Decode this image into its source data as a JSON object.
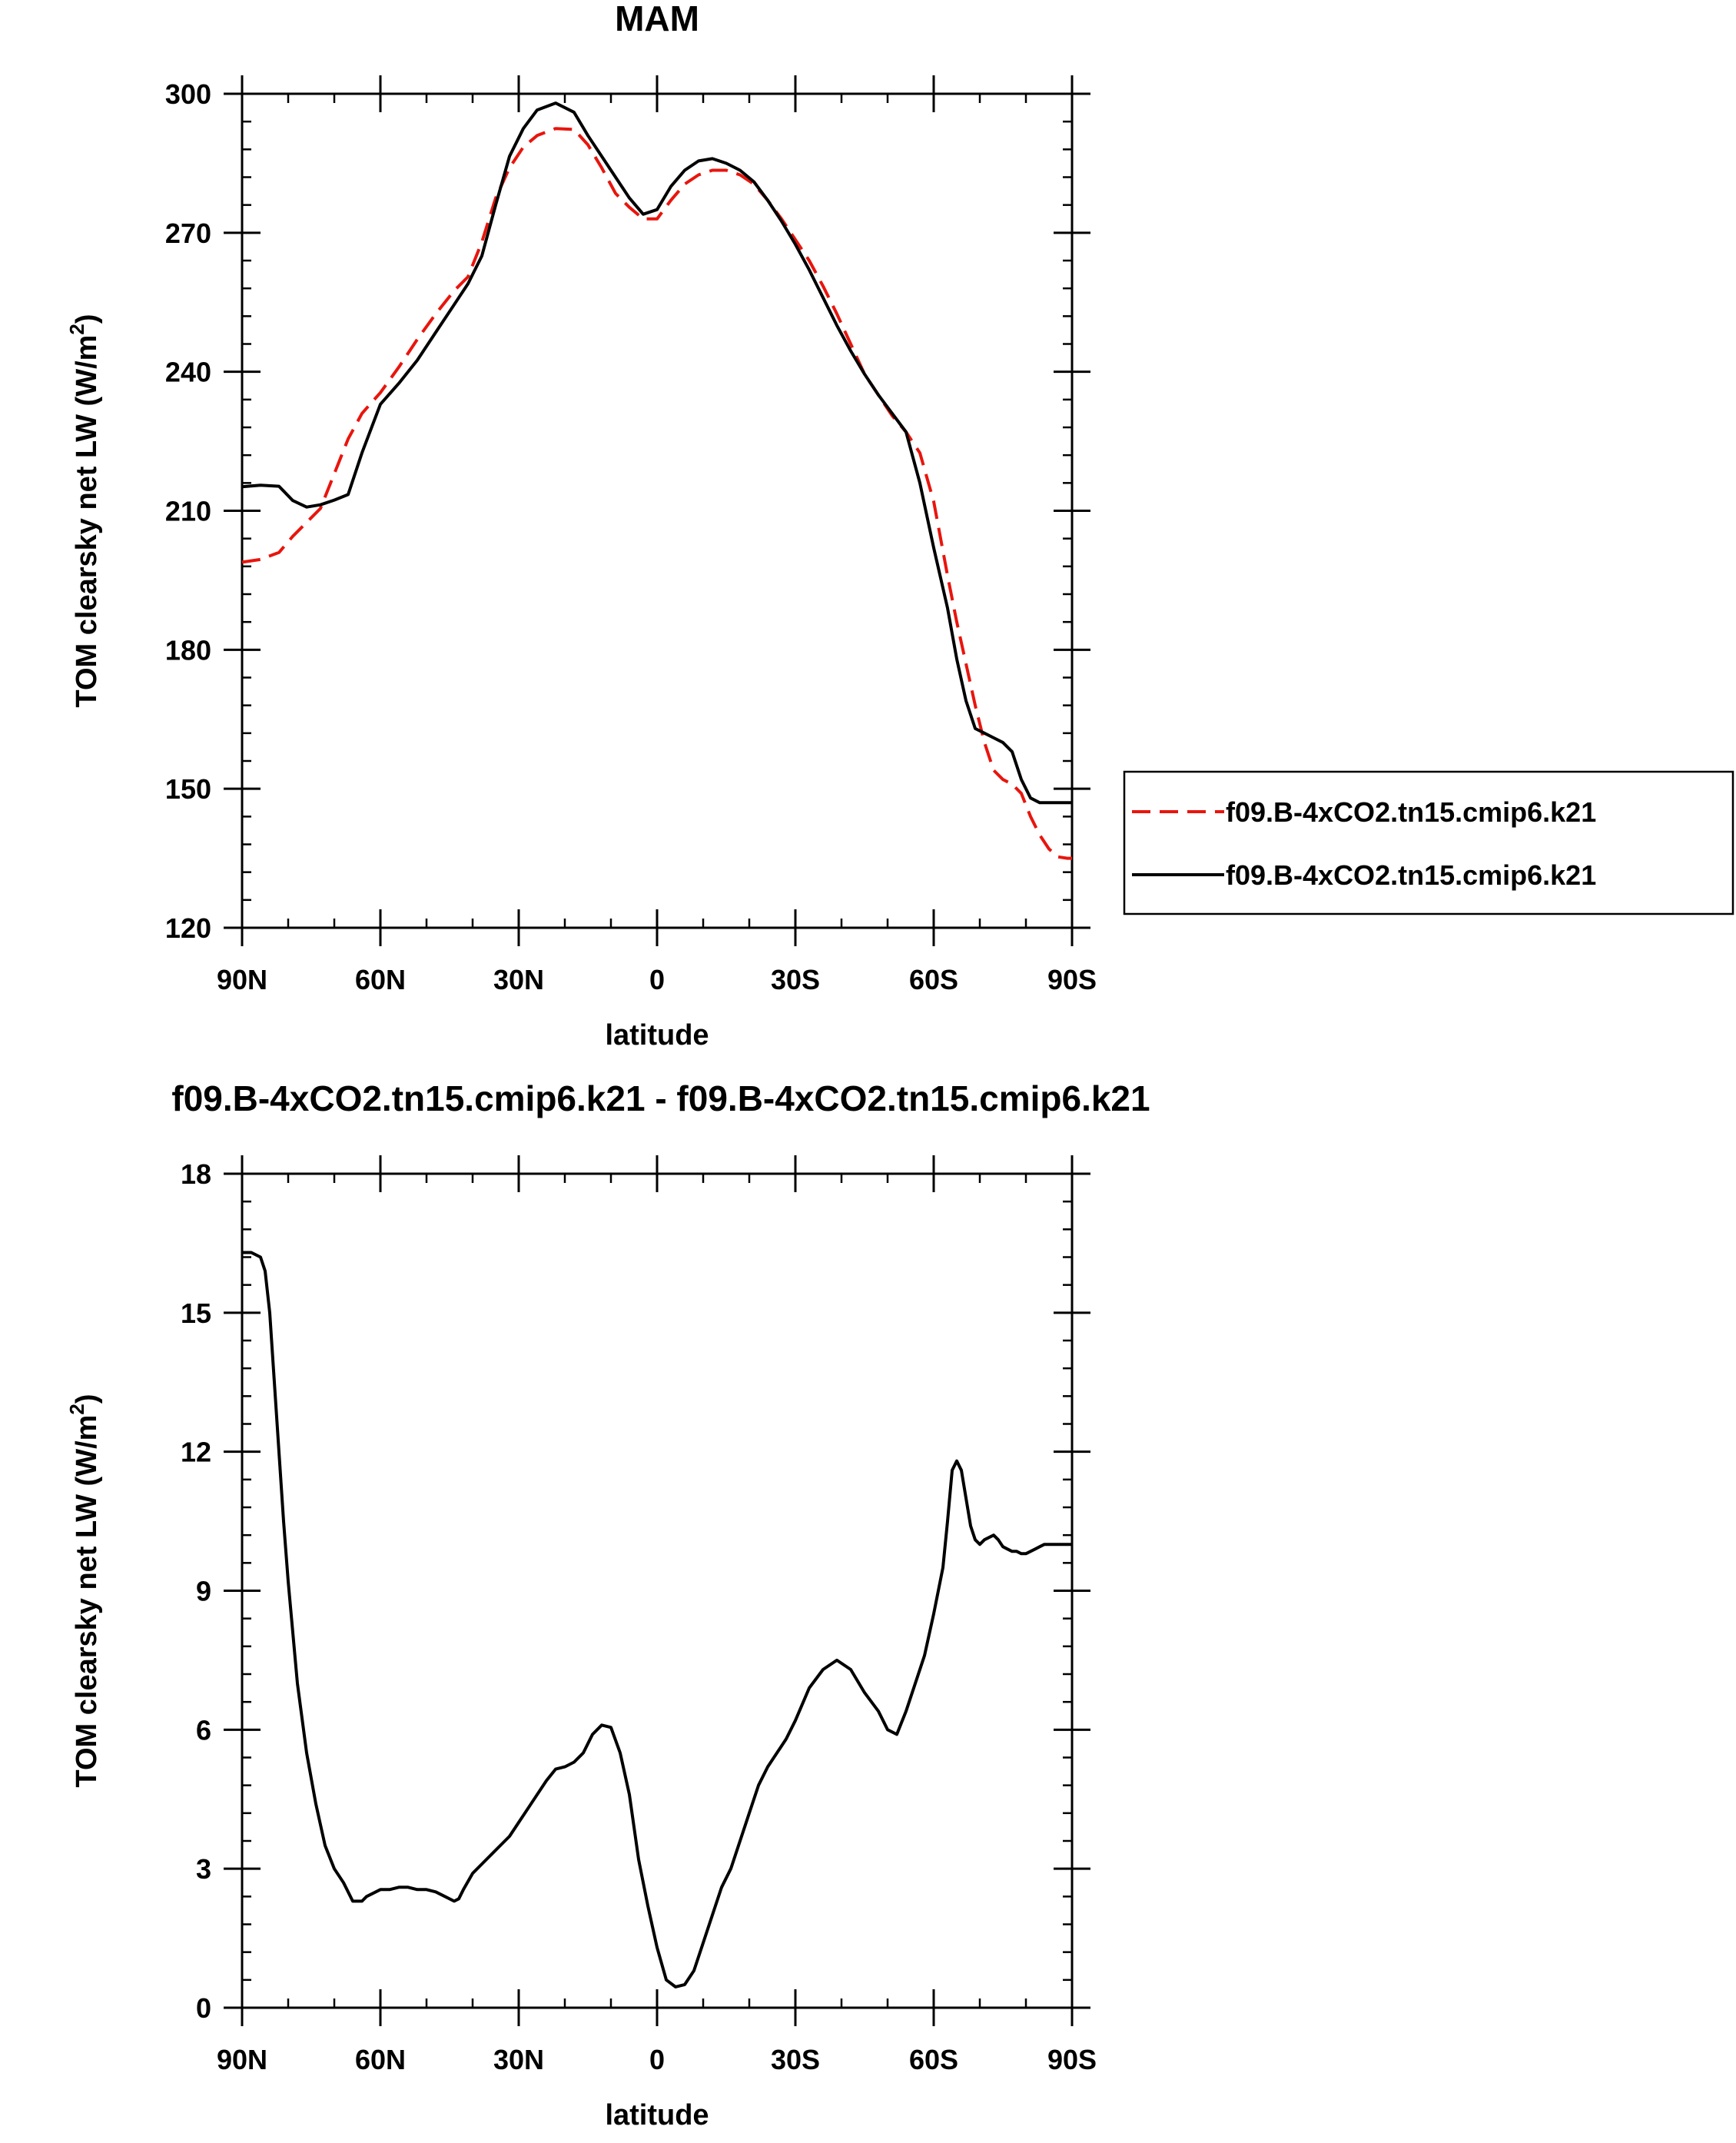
{
  "colors": {
    "control": "#000000",
    "experiment": "#e8150d",
    "axes": "#000000"
  },
  "chart_data": [
    {
      "type": "line",
      "title": "MAM",
      "xlabel": "latitude",
      "ylabel": "TOM clearsky net LW (W/m",
      "ylabel_unit_exponent": "2",
      "ylabel_close": ")",
      "xlim": [
        90,
        -90
      ],
      "ylim": [
        120,
        300
      ],
      "xticks": [
        90,
        60,
        30,
        0,
        -30,
        -60,
        -90
      ],
      "xtick_labels": [
        "90N",
        "60N",
        "30N",
        "0",
        "30S",
        "60S",
        "90S"
      ],
      "yticks": [
        120,
        150,
        180,
        210,
        240,
        270,
        300
      ],
      "ytick_labels": [
        "120",
        "150",
        "180",
        "210",
        "240",
        "270",
        "300"
      ],
      "legend_position": "right",
      "series": [
        {
          "name": "f09.B-4xCO2.tn15.cmip6.k21",
          "style": "dashed",
          "x": [
            90,
            86,
            82,
            79,
            76,
            73,
            70,
            67,
            64,
            60,
            56,
            52,
            48,
            44,
            41,
            38,
            35,
            32,
            29,
            26,
            22,
            18,
            15,
            12,
            9,
            6,
            3,
            0,
            -3,
            -6,
            -9,
            -12,
            -15,
            -18,
            -21,
            -24,
            -27,
            -30,
            -33,
            -36,
            -39,
            -42,
            -45,
            -48,
            -51,
            -54,
            -57,
            -60,
            -63,
            -65,
            -67,
            -69,
            -71,
            -73,
            -75,
            -77,
            -79,
            -81,
            -83,
            -85,
            -87,
            -89,
            -90
          ],
          "values": [
            198.9,
            199.5,
            201,
            204.5,
            207.5,
            210.5,
            218,
            225.5,
            231,
            235.5,
            241,
            247,
            252.5,
            257.5,
            260.5,
            268,
            277.5,
            284,
            288.5,
            291,
            292.5,
            292.3,
            289,
            284,
            278.5,
            275.5,
            273,
            273,
            277,
            280.5,
            282.5,
            283.5,
            283.5,
            282.5,
            280.5,
            277,
            273,
            268.5,
            264,
            258.5,
            252.5,
            246,
            239.5,
            235,
            230.5,
            227,
            222.5,
            212,
            196,
            186,
            177,
            168,
            160,
            154,
            152,
            151,
            149,
            144,
            140,
            137,
            135.3,
            135,
            135
          ]
        },
        {
          "name": "f09.B-4xCO2.tn15.cmip6.k21",
          "style": "solid",
          "x": [
            90,
            86,
            82,
            79,
            76,
            73,
            70,
            67,
            64,
            60,
            56,
            52,
            48,
            44,
            41,
            38,
            35,
            32,
            29,
            26,
            22,
            18,
            15,
            12,
            9,
            6,
            3,
            0,
            -3,
            -6,
            -9,
            -12,
            -15,
            -18,
            -21,
            -24,
            -27,
            -30,
            -33,
            -36,
            -39,
            -42,
            -45,
            -48,
            -51,
            -54,
            -57,
            -60,
            -63,
            -65,
            -67,
            -69,
            -71,
            -73,
            -75,
            -77,
            -79,
            -81,
            -83,
            -85,
            -87,
            -89,
            -90
          ],
          "values": [
            215.2,
            215.5,
            215.3,
            212.2,
            210.8,
            211.3,
            212.3,
            213.5,
            222.5,
            233,
            237.5,
            242.5,
            248.5,
            254.5,
            259,
            265,
            276,
            286.5,
            292.5,
            296.5,
            298,
            296,
            291,
            286.5,
            282,
            277.5,
            274,
            275,
            280,
            283.5,
            285.5,
            286,
            285,
            283.5,
            281,
            277,
            272.5,
            267.5,
            262,
            256,
            250,
            244.5,
            239.5,
            235,
            231,
            227,
            216,
            202,
            189,
            178,
            169,
            163,
            162,
            161,
            160,
            158,
            152,
            148,
            147,
            147,
            147,
            147,
            147
          ]
        }
      ]
    },
    {
      "type": "line",
      "title": "f09.B-4xCO2.tn15.cmip6.k21 - f09.B-4xCO2.tn15.cmip6.k21",
      "xlabel": "latitude",
      "ylabel": "TOM clearsky net LW (W/m",
      "ylabel_unit_exponent": "2",
      "ylabel_close": ")",
      "xlim": [
        90,
        -90
      ],
      "ylim": [
        0,
        18
      ],
      "xticks": [
        90,
        60,
        30,
        0,
        -30,
        -60,
        -90
      ],
      "xtick_labels": [
        "90N",
        "60N",
        "30N",
        "0",
        "30S",
        "60S",
        "90S"
      ],
      "yticks": [
        0,
        3,
        6,
        9,
        12,
        15,
        18
      ],
      "ytick_labels": [
        "0",
        "3",
        "6",
        "9",
        "12",
        "15",
        "18"
      ],
      "series": [
        {
          "style": "solid",
          "x": [
            90,
            88,
            86,
            85,
            84,
            83,
            82,
            81,
            80,
            78,
            76,
            74,
            72,
            70,
            68,
            66,
            64,
            63,
            62,
            61,
            60,
            58,
            56,
            54,
            52,
            50,
            48,
            46,
            44,
            43,
            42,
            40,
            38,
            36,
            34,
            32,
            30,
            28,
            26,
            24,
            22,
            20,
            18,
            16,
            14,
            12,
            10,
            8,
            6,
            5,
            4,
            2,
            0,
            -2,
            -4,
            -6,
            -8,
            -10,
            -12,
            -14,
            -16,
            -18,
            -20,
            -22,
            -24,
            -26,
            -28,
            -30,
            -33,
            -36,
            -39,
            -42,
            -45,
            -48,
            -50,
            -52,
            -54,
            -56,
            -58,
            -60,
            -62,
            -63,
            -64,
            -65,
            -66,
            -67,
            -68,
            -69,
            -70,
            -71,
            -72,
            -73,
            -74,
            -75,
            -76,
            -77,
            -78,
            -79,
            -80,
            -81,
            -82,
            -83,
            -84,
            -85,
            -86,
            -87,
            -88,
            -89,
            -90
          ],
          "values": [
            16.3,
            16.3,
            16.2,
            15.9,
            15.0,
            13.5,
            12.0,
            10.5,
            9.2,
            7.0,
            5.5,
            4.4,
            3.5,
            3.0,
            2.7,
            2.3,
            2.3,
            2.4,
            2.45,
            2.5,
            2.55,
            2.55,
            2.6,
            2.6,
            2.55,
            2.55,
            2.5,
            2.4,
            2.3,
            2.35,
            2.55,
            2.9,
            3.1,
            3.3,
            3.5,
            3.7,
            4.0,
            4.3,
            4.6,
            4.9,
            5.15,
            5.2,
            5.3,
            5.5,
            5.9,
            6.1,
            6.05,
            5.5,
            4.6,
            3.9,
            3.2,
            2.2,
            1.3,
            0.6,
            0.45,
            0.5,
            0.8,
            1.4,
            2.0,
            2.6,
            3.0,
            3.6,
            4.2,
            4.8,
            5.2,
            5.5,
            5.8,
            6.2,
            6.9,
            7.3,
            7.5,
            7.3,
            6.8,
            6.4,
            6.0,
            5.9,
            6.4,
            7.0,
            7.6,
            8.5,
            9.5,
            10.5,
            11.6,
            11.8,
            11.6,
            11.0,
            10.4,
            10.1,
            10.0,
            10.1,
            10.15,
            10.2,
            10.1,
            9.95,
            9.9,
            9.85,
            9.85,
            9.8,
            9.8,
            9.85,
            9.9,
            9.95,
            10.0,
            10.0,
            10.0,
            10.0,
            10.0,
            10.0,
            10.0
          ]
        }
      ]
    }
  ]
}
